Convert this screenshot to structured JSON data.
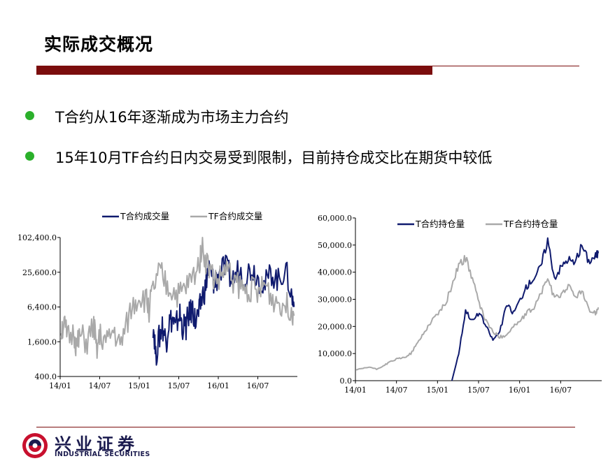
{
  "slide": {
    "title": "实际成交概况",
    "bullets": [
      "T合约从16年逐渐成为市场主力合约",
      "15年10月TF合约日内交易受到限制，目前持仓成交比在期货中较低"
    ]
  },
  "logo": {
    "cn": "兴业证券",
    "en": "INDUSTRIAL SECURITIES"
  },
  "colors": {
    "accent": "#7b0d0d",
    "bullet": "#2bb02b",
    "t_series": "#0f1a6e",
    "tf_series": "#a9a9a9"
  },
  "chart_data": [
    {
      "type": "line",
      "y_scale": "log2",
      "ylim": [
        400,
        102400
      ],
      "yticks": [
        400,
        1600,
        6400,
        25600,
        102400
      ],
      "ytick_labels": [
        "400.0",
        "1,600.0",
        "6,400.0",
        "25,600.0",
        "102,400.0"
      ],
      "xticks": [
        "14/01",
        "14/07",
        "15/01",
        "15/07",
        "16/01",
        "16/07"
      ],
      "xlim": [
        "2014-01",
        "2016-12"
      ],
      "grid": false,
      "legend": "top",
      "series": [
        {
          "name": "T合约成交量",
          "color": "#0f1a6e",
          "x": [
            "2015-03",
            "2015-03",
            "2015-04",
            "2015-04",
            "2015-05",
            "2015-05",
            "2015-06",
            "2015-06",
            "2015-07",
            "2015-07",
            "2015-08",
            "2015-08",
            "2015-09",
            "2015-09",
            "2015-10",
            "2015-10",
            "2015-11",
            "2015-11",
            "2015-12",
            "2015-12",
            "2016-01",
            "2016-02",
            "2016-03",
            "2016-04",
            "2016-05",
            "2016-06",
            "2016-07",
            "2016-08",
            "2016-09",
            "2016-10",
            "2016-11",
            "2016-12",
            "2016-12"
          ],
          "values": [
            3200,
            800,
            2000,
            3000,
            1500,
            3500,
            4000,
            2500,
            5000,
            3000,
            2800,
            4500,
            6000,
            3500,
            5000,
            9000,
            14000,
            30000,
            20000,
            15000,
            25000,
            30000,
            18000,
            28000,
            22000,
            30000,
            20000,
            15000,
            25000,
            18000,
            28000,
            10000,
            6400
          ]
        },
        {
          "name": "TF合约成交量",
          "color": "#a9a9a9",
          "x": [
            "2014-01",
            "2014-01",
            "2014-02",
            "2014-03",
            "2014-03",
            "2014-04",
            "2014-05",
            "2014-06",
            "2014-06",
            "2014-07",
            "2014-08",
            "2014-09",
            "2014-10",
            "2014-11",
            "2014-12",
            "2015-01",
            "2015-02",
            "2015-02",
            "2015-03",
            "2015-04",
            "2015-05",
            "2015-06",
            "2015-07",
            "2015-08",
            "2015-09",
            "2015-10",
            "2015-10",
            "2015-11",
            "2015-12",
            "2016-01",
            "2016-02",
            "2016-03",
            "2016-04",
            "2016-05",
            "2016-06",
            "2016-07",
            "2016-08",
            "2016-09",
            "2016-10",
            "2016-11",
            "2016-12",
            "2016-12"
          ],
          "values": [
            2500,
            3200,
            1800,
            2200,
            1200,
            2000,
            1500,
            3000,
            1000,
            2000,
            1500,
            2500,
            1200,
            3000,
            7000,
            10000,
            8000,
            6000,
            12000,
            25000,
            15000,
            12000,
            10000,
            14000,
            20000,
            35000,
            75000,
            40000,
            22000,
            18000,
            30000,
            20000,
            15000,
            12000,
            14000,
            10000,
            16000,
            9000,
            8000,
            7000,
            6000,
            4500
          ]
        }
      ]
    },
    {
      "type": "line",
      "ylim": [
        0,
        60000
      ],
      "yticks": [
        0,
        10000,
        20000,
        30000,
        40000,
        50000,
        60000
      ],
      "ytick_labels": [
        "0.0",
        "10,000.0",
        "20,000.0",
        "30,000.0",
        "40,000.0",
        "50,000.0",
        "60,000.0"
      ],
      "xticks": [
        "14/01",
        "14/07",
        "15/01",
        "15/07",
        "16/01",
        "16/07"
      ],
      "xlim": [
        "2014-01",
        "2016-12"
      ],
      "grid": false,
      "legend": "top",
      "series": [
        {
          "name": "T合约持仓量",
          "color": "#0f1a6e",
          "x": [
            "2015-03",
            "2015-04",
            "2015-05",
            "2015-06",
            "2015-07",
            "2015-08",
            "2015-09",
            "2015-10",
            "2015-11",
            "2015-12",
            "2016-01",
            "2016-02",
            "2016-03",
            "2016-04",
            "2016-05",
            "2016-06",
            "2016-07",
            "2016-08",
            "2016-09",
            "2016-10",
            "2016-11",
            "2016-12",
            "2016-12"
          ],
          "values": [
            0,
            10000,
            26000,
            22000,
            25000,
            20000,
            15000,
            18000,
            28000,
            25000,
            30000,
            35000,
            38000,
            42000,
            52000,
            38000,
            42000,
            45000,
            43000,
            50000,
            44000,
            46000,
            47000
          ]
        },
        {
          "name": "TF合约持仓量",
          "color": "#a9a9a9",
          "x": [
            "2014-01",
            "2014-02",
            "2014-03",
            "2014-04",
            "2014-05",
            "2014-06",
            "2014-07",
            "2014-08",
            "2014-09",
            "2014-10",
            "2014-11",
            "2014-12",
            "2015-01",
            "2015-02",
            "2015-03",
            "2015-04",
            "2015-05",
            "2015-06",
            "2015-07",
            "2015-08",
            "2015-09",
            "2015-10",
            "2015-11",
            "2015-12",
            "2016-01",
            "2016-02",
            "2016-03",
            "2016-04",
            "2016-05",
            "2016-06",
            "2016-07",
            "2016-08",
            "2016-09",
            "2016-10",
            "2016-11",
            "2016-12",
            "2016-12"
          ],
          "values": [
            4000,
            4500,
            5000,
            4200,
            5500,
            7000,
            8000,
            8500,
            10000,
            14000,
            18000,
            22000,
            25000,
            28000,
            35000,
            43000,
            45000,
            38000,
            28000,
            22000,
            18000,
            16000,
            17000,
            20000,
            22000,
            25000,
            27000,
            32000,
            38000,
            30000,
            32000,
            35000,
            31000,
            33000,
            26000,
            25000,
            27000
          ]
        }
      ]
    }
  ]
}
